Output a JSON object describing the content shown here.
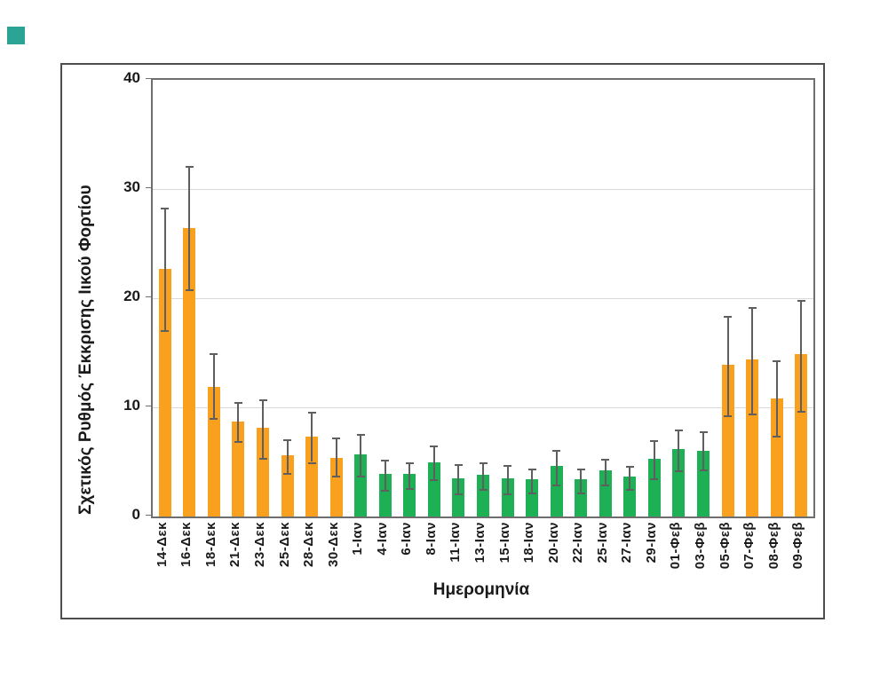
{
  "page": {
    "background": "#ffffff",
    "teal_marker_color": "#2BA495",
    "frame_border_color": "#4d4d4d",
    "axis_box_color": "#6e6e6e",
    "gridline_color": "#d9d9d9",
    "error_bar_color": "#5f5f5f",
    "text_color": "#1a1a1a"
  },
  "chart_data": {
    "type": "bar",
    "title": "",
    "xlabel": "Ημερομηνία",
    "ylabel": "Σχετικός Ρυθμός Έκκρισης Ιικού Φορτίου",
    "ylim": [
      0,
      40
    ],
    "yticks": [
      0,
      10,
      20,
      30,
      40
    ],
    "grid": "horizontal",
    "legend": "none",
    "categories": [
      "14-Δεκ",
      "16-Δεκ",
      "18-Δεκ",
      "21-Δεκ",
      "23-Δεκ",
      "25-Δεκ",
      "28-Δεκ",
      "30-Δεκ",
      "1-Ιαν",
      "4-Ιαν",
      "6-Ιαν",
      "8-Ιαν",
      "11-Ιαν",
      "13-Ιαν",
      "15-Ιαν",
      "18-Ιαν",
      "20-Ιαν",
      "22-Ιαν",
      "25-Ιαν",
      "27-Ιαν",
      "29-Ιαν",
      "01-Φεβ",
      "03-Φεβ",
      "05-Φεβ",
      "07-Φεβ",
      "08-Φεβ",
      "09-Φεβ"
    ],
    "values": [
      22.7,
      26.4,
      11.9,
      8.7,
      8.1,
      5.6,
      7.3,
      5.4,
      5.7,
      3.9,
      3.9,
      5.0,
      3.5,
      3.8,
      3.5,
      3.4,
      4.6,
      3.4,
      4.2,
      3.7,
      5.3,
      6.2,
      6.0,
      13.9,
      14.4,
      10.8,
      14.9
    ],
    "error_high": [
      28.3,
      32.1,
      15.0,
      10.5,
      10.7,
      7.1,
      9.6,
      7.2,
      7.6,
      5.2,
      5.0,
      6.5,
      4.8,
      5.0,
      4.7,
      4.4,
      6.1,
      4.4,
      5.3,
      4.6,
      7.0,
      8.0,
      7.8,
      18.4,
      19.2,
      14.3,
      19.8
    ],
    "error_low": [
      17.1,
      20.8,
      9.0,
      6.9,
      5.4,
      4.0,
      5.0,
      3.7,
      3.7,
      2.4,
      2.6,
      3.4,
      2.1,
      2.5,
      2.1,
      2.2,
      2.9,
      2.2,
      2.9,
      2.5,
      3.5,
      4.2,
      4.3,
      9.3,
      9.4,
      7.4,
      9.7
    ],
    "bar_groups": [
      "orange",
      "orange",
      "orange",
      "orange",
      "orange",
      "orange",
      "orange",
      "orange",
      "green",
      "green",
      "green",
      "green",
      "green",
      "green",
      "green",
      "green",
      "green",
      "green",
      "green",
      "green",
      "green",
      "green",
      "green",
      "orange",
      "orange",
      "orange",
      "orange"
    ],
    "group_colors": {
      "orange": "#F9A11E",
      "green": "#1DB054"
    }
  }
}
